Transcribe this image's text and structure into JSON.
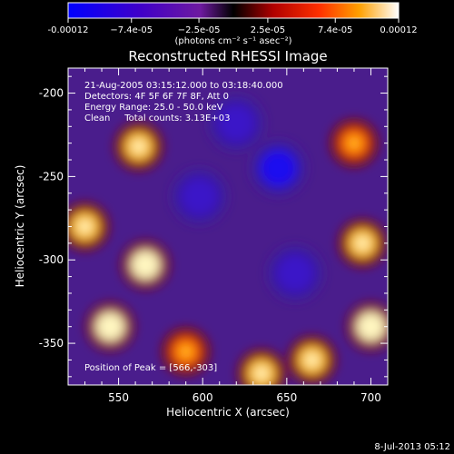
{
  "chart_data": {
    "type": "heatmap",
    "title": "Reconstructed RHESSI Image",
    "xlabel": "Heliocentric X (arcsec)",
    "ylabel": "Heliocentric Y (arcsec)",
    "xlim": [
      520,
      710
    ],
    "ylim": [
      -375,
      -185
    ],
    "x_ticks": [
      550,
      600,
      650,
      700
    ],
    "y_ticks": [
      -200,
      -250,
      -300,
      -350
    ],
    "colorbar": {
      "unit_label": "(photons cm⁻² s⁻¹ asec⁻²)",
      "range": [
        -0.00012,
        0.00012
      ],
      "tick_labels": [
        "-0.00012",
        "−7.4e-05",
        "−2.5e-05",
        "2.5e-05",
        "7.4e-05",
        "0.00012"
      ],
      "tick_values": [
        -0.00012,
        -7.4e-05,
        -2.5e-05,
        2.5e-05,
        7.4e-05,
        0.00012
      ]
    },
    "annotations": [
      "21-Aug-2005 03:15:12.000 to 03:18:40.000",
      "Detectors: 4F 5F 6F 7F 8F, Att 0",
      "Energy Range: 25.0 - 50.0 keV",
      "Clean     Total counts: 3.13E+03"
    ],
    "peak_text": "Position of Peak = [566,-303]",
    "peak": [
      566,
      -303
    ],
    "features": [
      {
        "kind": "min",
        "x": 645,
        "y": -245,
        "value": -0.00012
      },
      {
        "kind": "min",
        "x": 598,
        "y": -262,
        "value": -6e-05
      },
      {
        "kind": "min",
        "x": 655,
        "y": -308,
        "value": -5e-05
      },
      {
        "kind": "min",
        "x": 620,
        "y": -218,
        "value": -4e-05
      },
      {
        "kind": "max",
        "x": 566,
        "y": -303,
        "value": 0.00012
      },
      {
        "kind": "max",
        "x": 530,
        "y": -280,
        "value": 0.0001
      },
      {
        "kind": "max",
        "x": 545,
        "y": -340,
        "value": 0.00011
      },
      {
        "kind": "max",
        "x": 700,
        "y": -340,
        "value": 0.00011
      },
      {
        "kind": "max",
        "x": 695,
        "y": -290,
        "value": 9e-05
      },
      {
        "kind": "max",
        "x": 562,
        "y": -232,
        "value": 9e-05
      },
      {
        "kind": "max",
        "x": 690,
        "y": -230,
        "value": 8e-05
      },
      {
        "kind": "max",
        "x": 635,
        "y": -368,
        "value": 0.0001
      },
      {
        "kind": "max",
        "x": 590,
        "y": -355,
        "value": 8e-05
      },
      {
        "kind": "max",
        "x": 665,
        "y": -360,
        "value": 9e-05
      }
    ]
  },
  "footer": {
    "date_stamp": "8-Jul-2013 05:12"
  }
}
